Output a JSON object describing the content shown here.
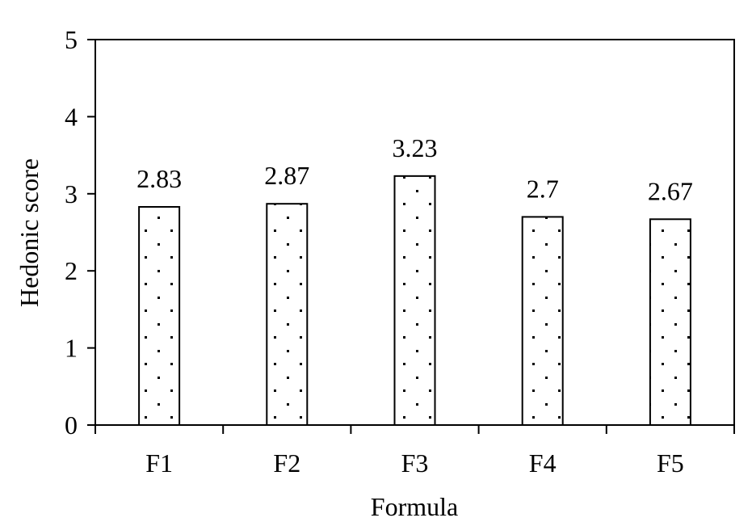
{
  "chart_data": {
    "type": "bar",
    "title": "",
    "xlabel": "Formula",
    "ylabel": "Hedonic score",
    "categories": [
      "F1",
      "F2",
      "F3",
      "F4",
      "F5"
    ],
    "values": [
      2.83,
      2.87,
      3.23,
      2.7,
      2.67
    ],
    "data_labels": [
      "2.83",
      "2.87",
      "3.23",
      "2.7",
      "2.67"
    ],
    "ylim": [
      0,
      5
    ],
    "yticks": [
      "0",
      "1",
      "2",
      "3",
      "4",
      "5"
    ],
    "grid": false,
    "legend": "none",
    "bar_fill": "dotted"
  }
}
